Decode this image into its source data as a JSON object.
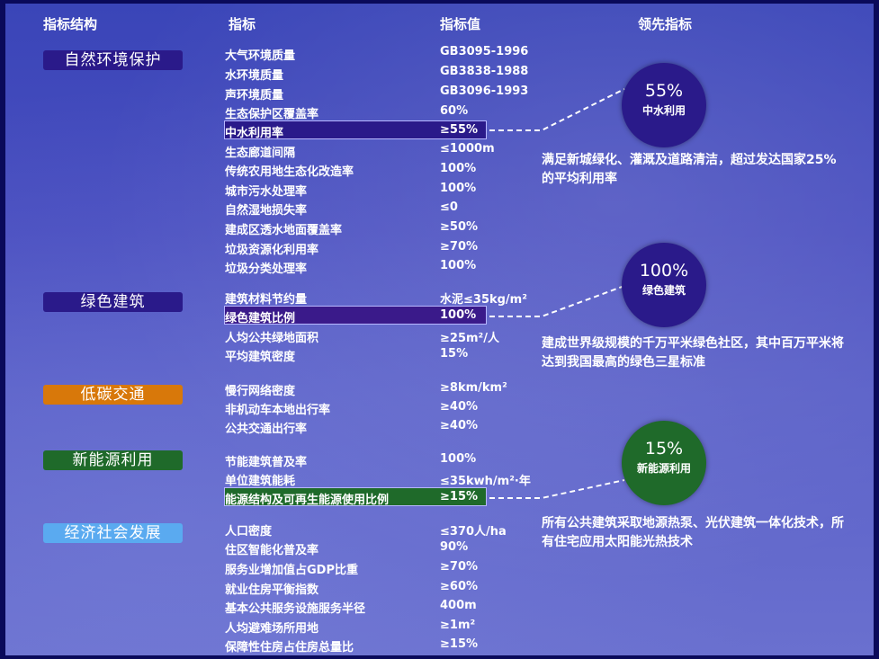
{
  "header": {
    "col1": "指标结构",
    "col2": "指标",
    "col3": "指标值",
    "col4": "领先指标"
  },
  "categories": [
    {
      "label": "自然环境保护",
      "color": "#2a1a8a"
    },
    {
      "label": "绿色建筑",
      "color": "#2a1a8a"
    },
    {
      "label": "低碳交通",
      "color": "#d8780a"
    },
    {
      "label": "新能源利用",
      "color": "#1f6a2a"
    },
    {
      "label": "经济社会发展",
      "color": "#5aaaf0"
    }
  ],
  "rows": [
    {
      "indicator": "大气环境质量",
      "value": "GB3095-1996"
    },
    {
      "indicator": "水环境质量",
      "value": "GB3838-1988"
    },
    {
      "indicator": "声环境质量",
      "value": "GB3096-1993"
    },
    {
      "indicator": "生态保护区覆盖率",
      "value": "60%"
    },
    {
      "indicator": "中水利用率",
      "value": "≥55%"
    },
    {
      "indicator": "生态廊道间隔",
      "value": "≤1000m"
    },
    {
      "indicator": "传统农用地生态化改造率",
      "value": "100%"
    },
    {
      "indicator": "城市污水处理率",
      "value": "100%"
    },
    {
      "indicator": "自然湿地损失率",
      "value": "≤0"
    },
    {
      "indicator": "建成区透水地面覆盖率",
      "value": "≥50%"
    },
    {
      "indicator": "垃圾资源化利用率",
      "value": "≥70%"
    },
    {
      "indicator": "垃圾分类处理率",
      "value": "100%"
    },
    {
      "indicator": "建筑材料节约量",
      "value": "水泥≤35kg/m²"
    },
    {
      "indicator": "绿色建筑比例",
      "value": "100%"
    },
    {
      "indicator": "人均公共绿地面积",
      "value": "≥25m²/人"
    },
    {
      "indicator": "平均建筑密度",
      "value": "15%"
    },
    {
      "indicator": "慢行网络密度",
      "value": "≥8km/km²"
    },
    {
      "indicator": "非机动车本地出行率",
      "value": "≥40%"
    },
    {
      "indicator": "公共交通出行率",
      "value": "≥40%"
    },
    {
      "indicator": "节能建筑普及率",
      "value": "100%"
    },
    {
      "indicator": "单位建筑能耗",
      "value": "≤35kwh/m²·年"
    },
    {
      "indicator": "能源结构及可再生能源使用比例",
      "value": "≥15%"
    },
    {
      "indicator": "人口密度",
      "value": "≤370人/ha"
    },
    {
      "indicator": "住区智能化普及率",
      "value": "90%"
    },
    {
      "indicator": "服务业增加值占GDP比重",
      "value": "≥70%"
    },
    {
      "indicator": "就业住房平衡指数",
      "value": "≥60%"
    },
    {
      "indicator": "基本公共服务设施服务半径",
      "value": "400m"
    },
    {
      "indicator": "人均避难场所用地",
      "value": "≥1m²"
    },
    {
      "indicator": "保障性住房占住房总量比",
      "value": "≥15%"
    }
  ],
  "leading": [
    {
      "pct": "55%",
      "label": "中水利用",
      "color": "#2a1a8a",
      "desc": "满足新城绿化、灌溉及道路清洁，超过发达国家25%的平均利用率"
    },
    {
      "pct": "100%",
      "label": "绿色建筑",
      "color": "#2a1a8a",
      "desc": "建成世界级规模的千万平米绿色社区，其中百万平米将达到我国最高的绿色三星标准"
    },
    {
      "pct": "15%",
      "label": "新能源利用",
      "color": "#1f6a2a",
      "desc": "所有公共建筑采取地源热泵、光伏建筑一体化技术，所有住宅应用太阳能光热技术"
    }
  ]
}
